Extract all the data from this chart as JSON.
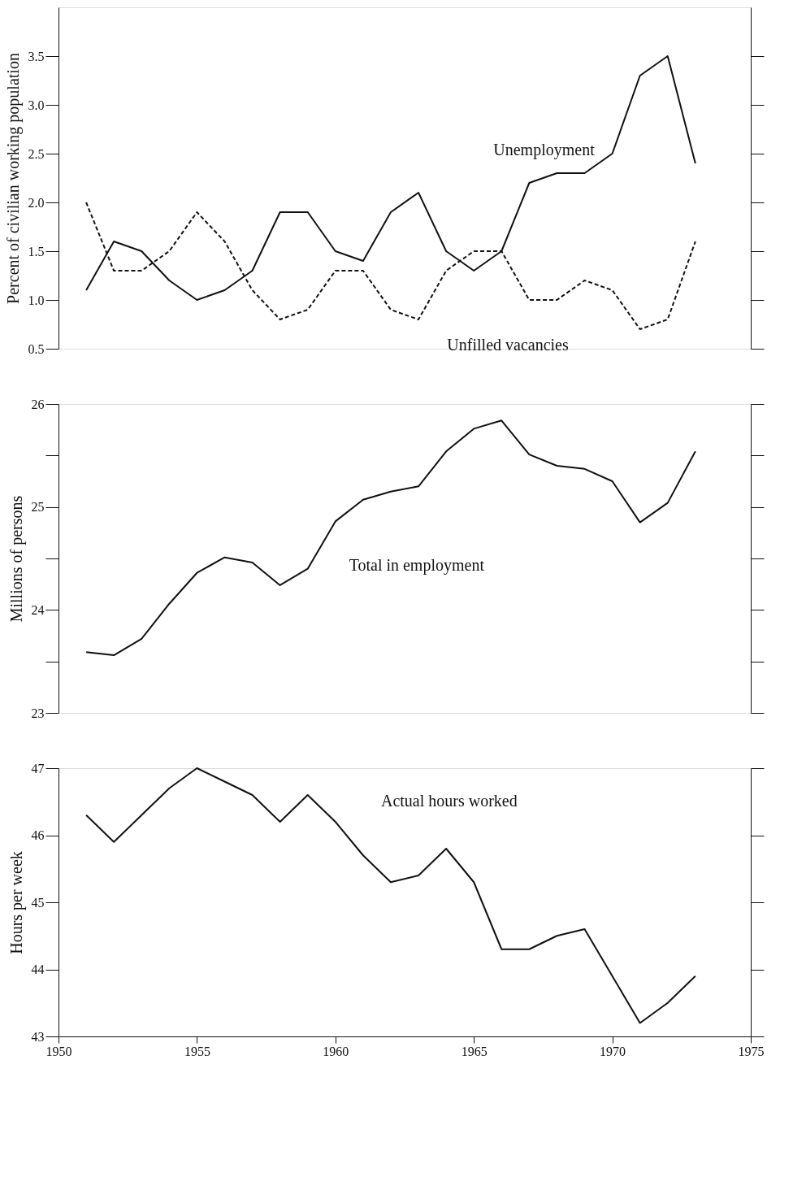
{
  "chart_data": [
    {
      "type": "line",
      "ylabel": "Percent of civilian working population",
      "x": [
        1951,
        1952,
        1953,
        1954,
        1955,
        1956,
        1957,
        1958,
        1959,
        1960,
        1961,
        1962,
        1963,
        1964,
        1965,
        1966,
        1967,
        1968,
        1969,
        1970,
        1971,
        1972,
        1973
      ],
      "xlim": [
        1950,
        1975
      ],
      "ylim": [
        0.5,
        4.0
      ],
      "yticks": [
        0.5,
        {
          "value": 1.0,
          "label": "1.0"
        },
        1.5,
        {
          "value": 2.0,
          "label": "2.0"
        },
        2.5,
        {
          "value": 3.0,
          "label": "3.0"
        },
        3.5
      ],
      "tick_labels": "y",
      "grid": false,
      "legend": false,
      "marker": "none",
      "series": [
        {
          "name": "Unemployment",
          "color": "#111111",
          "line_style": "solid",
          "values": [
            1.1,
            1.6,
            1.5,
            1.2,
            1.0,
            1.1,
            1.3,
            1.9,
            1.9,
            1.5,
            1.4,
            1.9,
            2.1,
            1.5,
            1.3,
            1.5,
            2.2,
            2.3,
            2.3,
            2.5,
            3.3,
            3.5,
            2.4
          ]
        },
        {
          "name": "Unfilled vacancies",
          "color": "#111111",
          "line_style": "dashed",
          "values": [
            2.0,
            1.3,
            1.3,
            1.5,
            1.9,
            1.6,
            1.1,
            0.8,
            0.9,
            1.3,
            1.3,
            0.9,
            0.8,
            1.3,
            1.5,
            1.5,
            1.0,
            1.0,
            1.2,
            1.1,
            0.7,
            0.8,
            1.6
          ]
        }
      ]
    },
    {
      "type": "line",
      "ylabel": "Millions of persons",
      "x": [
        1951,
        1952,
        1953,
        1954,
        1955,
        1956,
        1957,
        1958,
        1959,
        1960,
        1961,
        1962,
        1963,
        1964,
        1965,
        1966,
        1967,
        1968,
        1969,
        1970,
        1971,
        1972,
        1973
      ],
      "xlim": [
        1950,
        1975
      ],
      "ylim": [
        23,
        26
      ],
      "yticks": [
        23,
        {
          "value": 23.5,
          "label": null
        },
        24,
        {
          "value": 24.5,
          "label": null
        },
        25,
        {
          "value": 25.5,
          "label": null
        },
        26
      ],
      "tick_labels": "y",
      "grid": false,
      "legend": false,
      "marker": "none",
      "series": [
        {
          "name": "Total in employment",
          "color": "#111111",
          "line_style": "solid",
          "values": [
            23.59,
            23.56,
            23.72,
            24.06,
            24.36,
            24.51,
            24.46,
            24.24,
            24.4,
            24.86,
            25.07,
            25.15,
            25.2,
            25.54,
            25.76,
            25.84,
            25.51,
            25.4,
            25.37,
            25.25,
            24.85,
            25.04,
            25.54
          ]
        }
      ]
    },
    {
      "type": "line",
      "ylabel": "Hours per week",
      "x": [
        1951,
        1952,
        1953,
        1954,
        1955,
        1956,
        1957,
        1958,
        1959,
        1960,
        1961,
        1962,
        1963,
        1964,
        1965,
        1966,
        1967,
        1968,
        1969,
        1970,
        1971,
        1972,
        1973
      ],
      "xlim": [
        1950,
        1975
      ],
      "xticks": [
        1950,
        1955,
        1960,
        1965,
        1970,
        1975
      ],
      "ylim": [
        43,
        47
      ],
      "yticks": [
        43,
        44,
        45,
        46,
        47
      ],
      "grid": false,
      "legend": false,
      "marker": "none",
      "series": [
        {
          "name": "Actual hours worked",
          "color": "#111111",
          "line_style": "solid",
          "values": [
            46.3,
            45.9,
            46.3,
            46.7,
            47.0,
            46.8,
            46.6,
            46.2,
            46.6,
            46.2,
            45.7,
            45.3,
            45.4,
            45.8,
            45.3,
            44.3,
            44.3,
            44.5,
            44.6,
            43.9,
            43.2,
            43.5,
            43.9
          ]
        }
      ]
    }
  ]
}
